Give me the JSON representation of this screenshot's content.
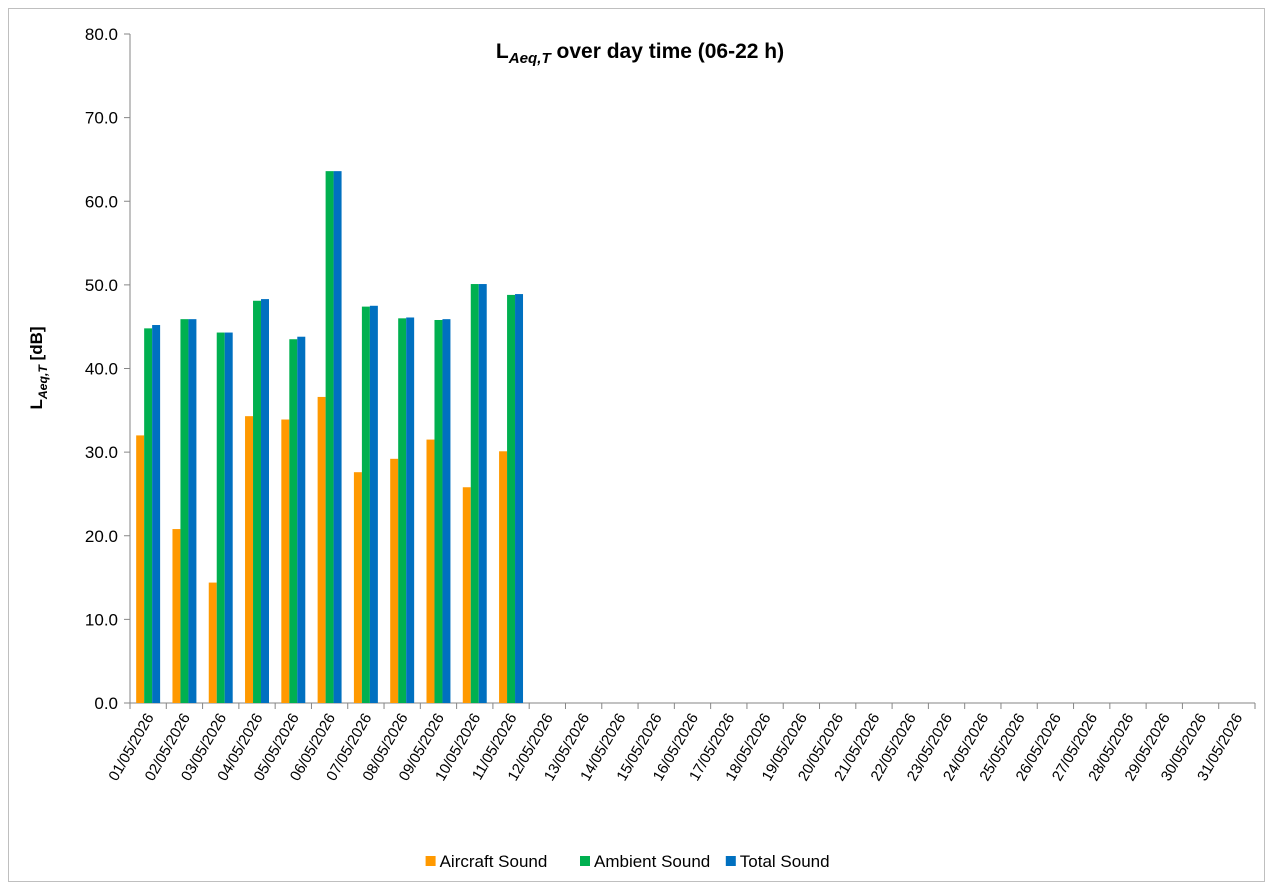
{
  "chart_data": {
    "type": "bar",
    "title": "LAeq,T over day time (06-22 h)",
    "y_label": "LAeq,T [dB]",
    "categories": [
      "01/05/2026",
      "02/05/2026",
      "03/05/2026",
      "04/05/2026",
      "05/05/2026",
      "06/05/2026",
      "07/05/2026",
      "08/05/2026",
      "09/05/2026",
      "10/05/2026",
      "11/05/2026",
      "12/05/2026",
      "13/05/2026",
      "14/05/2026",
      "15/05/2026",
      "16/05/2026",
      "17/05/2026",
      "18/05/2026",
      "19/05/2026",
      "20/05/2026",
      "21/05/2026",
      "22/05/2026",
      "23/05/2026",
      "24/05/2026",
      "25/05/2026",
      "26/05/2026",
      "27/05/2026",
      "28/05/2026",
      "29/05/2026",
      "30/05/2026",
      "31/05/2026"
    ],
    "series": [
      {
        "name": "Aircraft Sound",
        "color": "#ff9900",
        "values": [
          32.0,
          20.8,
          14.4,
          34.3,
          33.9,
          36.6,
          27.6,
          29.2,
          31.5,
          25.8,
          30.1,
          null,
          null,
          null,
          null,
          null,
          null,
          null,
          null,
          null,
          null,
          null,
          null,
          null,
          null,
          null,
          null,
          null,
          null,
          null,
          null
        ]
      },
      {
        "name": "Ambient Sound",
        "color": "#00b050",
        "values": [
          44.8,
          45.9,
          44.3,
          48.1,
          43.5,
          63.6,
          47.4,
          46.0,
          45.8,
          50.1,
          48.8,
          null,
          null,
          null,
          null,
          null,
          null,
          null,
          null,
          null,
          null,
          null,
          null,
          null,
          null,
          null,
          null,
          null,
          null,
          null,
          null
        ]
      },
      {
        "name": "Total Sound",
        "color": "#0070c0",
        "values": [
          45.2,
          45.9,
          44.3,
          48.3,
          43.8,
          63.6,
          47.5,
          46.1,
          45.9,
          50.1,
          48.9,
          null,
          null,
          null,
          null,
          null,
          null,
          null,
          null,
          null,
          null,
          null,
          null,
          null,
          null,
          null,
          null,
          null,
          null,
          null,
          null
        ]
      }
    ],
    "ylim": [
      0,
      80
    ],
    "yticks": [
      {
        "value": 0,
        "label": "0.0"
      },
      {
        "value": 10,
        "label": "10.0"
      },
      {
        "value": 20,
        "label": "20.0"
      },
      {
        "value": 30,
        "label": "30.0"
      },
      {
        "value": 40,
        "label": "40.0"
      },
      {
        "value": 50,
        "label": "50.0"
      },
      {
        "value": 60,
        "label": "60.0"
      },
      {
        "value": 70,
        "label": "70.0"
      },
      {
        "value": 80,
        "label": "80.0"
      }
    ],
    "grid": false,
    "legend": "bottom"
  }
}
